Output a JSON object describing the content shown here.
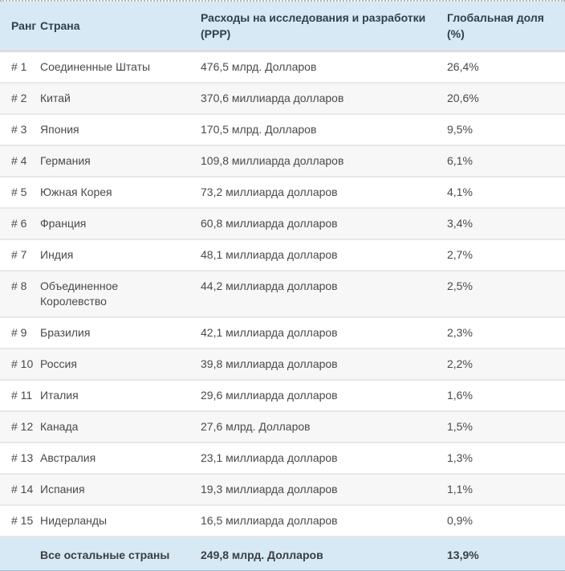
{
  "chart_data": {
    "type": "table",
    "title": "",
    "columns": [
      "Ранг",
      "Страна",
      "Расходы на исследования и разработки (PPP)",
      "Глобальная доля (%)"
    ],
    "rows": [
      {
        "rank": "# 1",
        "country": "Соединенные Штаты",
        "expenditure": "476,5 млрд. Долларов",
        "share": "26,4%"
      },
      {
        "rank": "# 2",
        "country": "Китай",
        "expenditure": "370,6 миллиарда долларов",
        "share": "20,6%"
      },
      {
        "rank": "# 3",
        "country": "Япония",
        "expenditure": "170,5 млрд. Долларов",
        "share": "9,5%"
      },
      {
        "rank": "# 4",
        "country": "Германия",
        "expenditure": "109,8 миллиарда долларов",
        "share": "6,1%"
      },
      {
        "rank": "# 5",
        "country": "Южная Корея",
        "expenditure": "73,2 миллиарда долларов",
        "share": "4,1%"
      },
      {
        "rank": "# 6",
        "country": "Франция",
        "expenditure": "60,8 миллиарда долларов",
        "share": "3,4%"
      },
      {
        "rank": "# 7",
        "country": "Индия",
        "expenditure": "48,1 миллиарда долларов",
        "share": "2,7%"
      },
      {
        "rank": "# 8",
        "country": "Объединенное Королевство",
        "expenditure": "44,2 миллиарда долларов",
        "share": "2,5%"
      },
      {
        "rank": "# 9",
        "country": "Бразилия",
        "expenditure": "42,1 миллиарда долларов",
        "share": "2,3%"
      },
      {
        "rank": "# 10",
        "country": "Россия",
        "expenditure": "39,8 миллиарда долларов",
        "share": "2,2%"
      },
      {
        "rank": "# 11",
        "country": "Италия",
        "expenditure": "29,6 миллиарда долларов",
        "share": "1,6%"
      },
      {
        "rank": "# 12",
        "country": "Канада",
        "expenditure": "27,6 млрд. Долларов",
        "share": "1,5%"
      },
      {
        "rank": "# 13",
        "country": "Австралия",
        "expenditure": "23,1 миллиарда долларов",
        "share": "1,3%"
      },
      {
        "rank": "# 14",
        "country": "Испания",
        "expenditure": "19,3 миллиарда долларов",
        "share": "1,1%"
      },
      {
        "rank": "# 15",
        "country": "Нидерланды",
        "expenditure": "16,5 миллиарда долларов",
        "share": "0,9%"
      }
    ],
    "footer": {
      "rank": "",
      "country": "Все остальные страны",
      "expenditure": "249,8 млрд. Долларов",
      "share": "13,9%"
    },
    "layout": {
      "striped": true,
      "stripe_on": "even-rows"
    }
  },
  "header": {
    "rank": "Ранг",
    "country": "Страна",
    "expenditure_line1": "Расходы на исследования и разработки",
    "expenditure_line2": "(PPP)",
    "share_line1": "Глобальная доля",
    "share_line2": "(%)"
  },
  "colors": {
    "header_bg": "#d7e9f5",
    "footer_bg": "#d7e9f5",
    "row_bg": "#ffffff",
    "row_stripe_bg": "#f7f7f7",
    "row_separator": "#e8e8e8",
    "header_separator": "#dcdcdc",
    "top_dotted_border": "#b5b5b5",
    "header_text": "#31404e",
    "body_text": "#4a4a4a",
    "footer_text": "#3a3f44"
  }
}
